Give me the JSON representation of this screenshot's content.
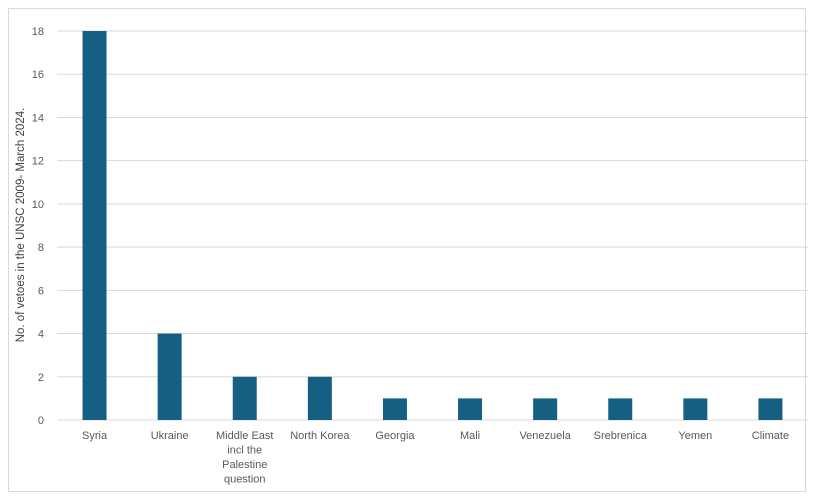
{
  "chart_data": {
    "type": "bar",
    "categories": [
      "Syria",
      "Ukraine",
      "Middle East incl the Palestine question",
      "North Korea",
      "Georgia",
      "Mali",
      "Venezuela",
      "Srebrenica",
      "Yemen",
      "Climate"
    ],
    "category_label_lines": [
      [
        "Syria"
      ],
      [
        "Ukraine"
      ],
      [
        "Middle East",
        "incl the",
        "Palestine",
        "question"
      ],
      [
        "North Korea"
      ],
      [
        "Georgia"
      ],
      [
        "Mali"
      ],
      [
        "Venezuela"
      ],
      [
        "Srebrenica"
      ],
      [
        "Yemen"
      ],
      [
        "Climate"
      ]
    ],
    "values": [
      18,
      4,
      2,
      2,
      1,
      1,
      1,
      1,
      1,
      1
    ],
    "title": "",
    "xlabel": "",
    "ylabel": "No. of vetoes in the UNSC 2009- March 2024.",
    "ylim": [
      0,
      18
    ],
    "yticks": [
      "0",
      "2",
      "4",
      "6",
      "8",
      "10",
      "12",
      "14",
      "16",
      "18"
    ],
    "grid": true,
    "legend": "none",
    "bar_color": "#156082",
    "grid_color": "#d9d9d9"
  }
}
